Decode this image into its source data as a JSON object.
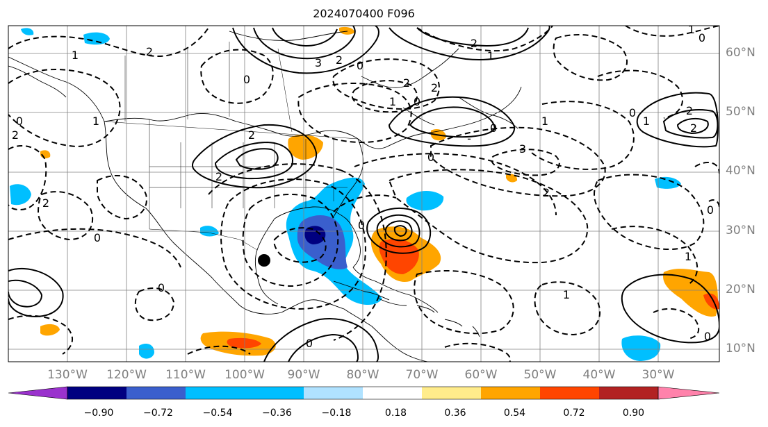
{
  "title": "2024070400 F096",
  "lat_labels": [
    {
      "lat": 60,
      "text": "60°N"
    },
    {
      "lat": 50,
      "text": "50°N"
    },
    {
      "lat": 40,
      "text": "40°N"
    },
    {
      "lat": 30,
      "text": "30°N"
    },
    {
      "lat": 20,
      "text": "20°N"
    },
    {
      "lat": 10,
      "text": "10°N"
    }
  ],
  "lon_labels": [
    {
      "lon": -130,
      "text": "130°W"
    },
    {
      "lon": -120,
      "text": "120°W"
    },
    {
      "lon": -110,
      "text": "110°W"
    },
    {
      "lon": -100,
      "text": "100°W"
    },
    {
      "lon": -90,
      "text": "90°W"
    },
    {
      "lon": -80,
      "text": "80°W"
    },
    {
      "lon": -70,
      "text": "70°W"
    },
    {
      "lon": -60,
      "text": "60°W"
    },
    {
      "lon": -50,
      "text": "50°W"
    },
    {
      "lon": -40,
      "text": "40°W"
    },
    {
      "lon": -30,
      "text": "30°W"
    }
  ],
  "colorbar": {
    "ticks": [
      "−0.90",
      "−0.72",
      "−0.54",
      "−0.36",
      "−0.18",
      "0.18",
      "0.36",
      "0.54",
      "0.72",
      "0.90"
    ],
    "colors": [
      "#9a32cd",
      "#000080",
      "#3a5fcd",
      "#00bfff",
      "#b0e2ff",
      "#ffffff",
      "#ffec8b",
      "#ffa500",
      "#ff4500",
      "#b22222",
      "#ff82ab"
    ]
  },
  "contour_labels": [
    "1",
    "2",
    "3",
    "2",
    "2",
    "1",
    "0",
    "2",
    "0",
    "1",
    "2",
    "0",
    "-",
    "0",
    "1",
    "3",
    "2",
    "2",
    "0",
    "2",
    "1",
    "0",
    "2",
    "2",
    "0",
    "0",
    "2",
    "1",
    "0",
    "1",
    "0",
    "0",
    "0",
    "1",
    "0",
    "2",
    "1",
    "0"
  ],
  "marker": {
    "lat": 25,
    "lon": -97
  }
}
